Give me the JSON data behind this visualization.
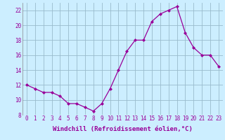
{
  "x": [
    0,
    1,
    2,
    3,
    4,
    5,
    6,
    7,
    8,
    9,
    10,
    11,
    12,
    13,
    14,
    15,
    16,
    17,
    18,
    19,
    20,
    21,
    22,
    23
  ],
  "y": [
    12.0,
    11.5,
    11.0,
    11.0,
    10.5,
    9.5,
    9.5,
    9.0,
    8.5,
    9.5,
    11.5,
    14.0,
    16.5,
    18.0,
    18.0,
    20.5,
    21.5,
    22.0,
    22.5,
    19.0,
    17.0,
    16.0,
    16.0,
    14.5
  ],
  "ylim": [
    8,
    23
  ],
  "xlim": [
    -0.5,
    23.5
  ],
  "yticks": [
    8,
    10,
    12,
    14,
    16,
    18,
    20,
    22
  ],
  "xticks": [
    0,
    1,
    2,
    3,
    4,
    5,
    6,
    7,
    8,
    9,
    10,
    11,
    12,
    13,
    14,
    15,
    16,
    17,
    18,
    19,
    20,
    21,
    22,
    23
  ],
  "xlabel": "Windchill (Refroidissement éolien,°C)",
  "line_color": "#990099",
  "marker": "D",
  "marker_size": 2,
  "bg_color": "#cceeff",
  "grid_color": "#99bbcc",
  "tick_fontsize": 5.5,
  "xlabel_fontsize": 6.5
}
